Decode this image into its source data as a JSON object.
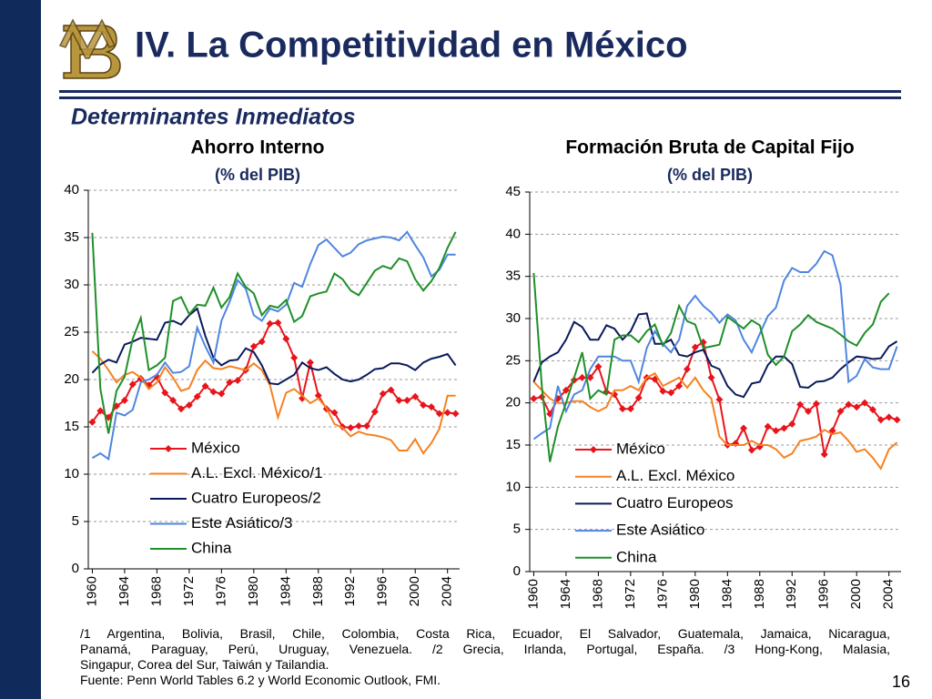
{
  "header": {
    "title": "IV. La Competitividad en México",
    "subtitle": "Determinantes Inmediatos"
  },
  "chart_data": [
    {
      "type": "line",
      "title": "Ahorro Interno",
      "subtitle": "(% del PIB)",
      "x": [
        1960,
        1961,
        1962,
        1963,
        1964,
        1965,
        1966,
        1967,
        1968,
        1969,
        1970,
        1971,
        1972,
        1973,
        1974,
        1975,
        1976,
        1977,
        1978,
        1979,
        1980,
        1981,
        1982,
        1983,
        1984,
        1985,
        1986,
        1987,
        1988,
        1989,
        1990,
        1991,
        1992,
        1993,
        1994,
        1995,
        1996,
        1997,
        1998,
        1999,
        2000,
        2001,
        2002,
        2003,
        2004,
        2005
      ],
      "xlim": [
        1959.5,
        2005.5
      ],
      "xticks": [
        1960,
        1964,
        1968,
        1972,
        1976,
        1980,
        1984,
        1988,
        1992,
        1996,
        2000,
        2004
      ],
      "ylim": [
        0,
        40
      ],
      "yticks": [
        0,
        5,
        10,
        15,
        20,
        25,
        30,
        35,
        40
      ],
      "grid": true,
      "legend": "bottom",
      "series": [
        {
          "name": "México",
          "color": "#e8141b",
          "marker": "diamond",
          "values": [
            15.5,
            16.7,
            16.0,
            17.2,
            17.8,
            19.5,
            20.1,
            19.4,
            20.3,
            18.6,
            17.8,
            16.9,
            17.3,
            18.2,
            19.3,
            18.7,
            18.5,
            19.7,
            19.9,
            21.0,
            23.5,
            24.0,
            25.9,
            26.0,
            24.3,
            22.3,
            18.0,
            21.8,
            18.3,
            16.9,
            16.5,
            15.0,
            14.9,
            15.1,
            15.1,
            16.6,
            18.5,
            18.9,
            17.8,
            17.8,
            18.2,
            17.3,
            17.1,
            16.4,
            16.5,
            16.4
          ]
        },
        {
          "name": "A.L. Excl. México/1",
          "color": "#f58220",
          "values": [
            23.0,
            22.2,
            21.0,
            19.7,
            20.5,
            20.8,
            20.2,
            19.0,
            19.7,
            21.3,
            20.2,
            18.8,
            19.1,
            21.0,
            22.0,
            21.2,
            21.1,
            21.4,
            21.2,
            21.0,
            21.7,
            21.0,
            19.4,
            16.0,
            18.6,
            19.0,
            18.3,
            17.5,
            18.0,
            17.0,
            15.3,
            14.9,
            14.0,
            14.5,
            14.2,
            14.1,
            13.9,
            13.6,
            12.5,
            12.5,
            13.7,
            12.2,
            13.3,
            14.8,
            18.3,
            18.3
          ]
        },
        {
          "name": "Cuatro Europeos/2",
          "color": "#0a1a5c",
          "values": [
            20.7,
            21.6,
            22.1,
            21.8,
            23.7,
            24.0,
            24.4,
            24.3,
            24.2,
            26.0,
            26.2,
            25.8,
            26.8,
            27.5,
            24.6,
            22.3,
            21.5,
            22.0,
            22.1,
            23.3,
            22.9,
            21.5,
            19.6,
            19.5,
            20.0,
            20.5,
            21.8,
            21.2,
            21.0,
            21.3,
            20.6,
            20.0,
            19.8,
            20.0,
            20.5,
            21.1,
            21.2,
            21.7,
            21.7,
            21.5,
            21.0,
            21.8,
            22.2,
            22.4,
            22.7,
            21.5
          ]
        },
        {
          "name": "Este Asiático/3",
          "color": "#4f86e0",
          "values": [
            11.7,
            12.2,
            11.6,
            16.5,
            16.2,
            16.8,
            19.7,
            20.0,
            20.5,
            21.8,
            20.7,
            20.8,
            21.4,
            25.5,
            23.5,
            21.8,
            26.2,
            28.2,
            30.5,
            29.6,
            26.8,
            26.2,
            27.5,
            27.2,
            27.9,
            30.2,
            29.8,
            32.2,
            34.2,
            34.8,
            33.9,
            33.0,
            33.4,
            34.3,
            34.7,
            34.9,
            35.1,
            35.0,
            34.7,
            35.6,
            34.2,
            32.9,
            30.9,
            31.6,
            33.2,
            33.2
          ]
        },
        {
          "name": "China",
          "color": "#1f8f2a",
          "values": [
            35.5,
            19.0,
            14.3,
            18.8,
            20.3,
            24.3,
            26.5,
            21.0,
            21.5,
            22.3,
            28.3,
            28.7,
            26.9,
            27.9,
            27.8,
            29.7,
            27.6,
            28.7,
            31.2,
            29.8,
            29.1,
            26.8,
            27.8,
            27.6,
            28.4,
            26.1,
            26.7,
            28.8,
            29.1,
            29.3,
            31.2,
            30.6,
            29.4,
            28.9,
            30.2,
            31.5,
            32.0,
            31.7,
            32.8,
            32.5,
            30.6,
            29.4,
            30.4,
            31.8,
            33.9,
            35.6
          ]
        }
      ]
    },
    {
      "type": "line",
      "title": "Formación Bruta de Capital Fijo",
      "subtitle": "(% del PIB)",
      "x": [
        1960,
        1961,
        1962,
        1963,
        1964,
        1965,
        1966,
        1967,
        1968,
        1969,
        1970,
        1971,
        1972,
        1973,
        1974,
        1975,
        1976,
        1977,
        1978,
        1979,
        1980,
        1981,
        1982,
        1983,
        1984,
        1985,
        1986,
        1987,
        1988,
        1989,
        1990,
        1991,
        1992,
        1993,
        1994,
        1995,
        1996,
        1997,
        1998,
        1999,
        2000,
        2001,
        2002,
        2003,
        2004,
        2005
      ],
      "xlim": [
        1959.5,
        2005.5
      ],
      "xticks": [
        1960,
        1964,
        1968,
        1972,
        1976,
        1980,
        1984,
        1988,
        1992,
        1996,
        2000,
        2004
      ],
      "ylim": [
        0,
        45
      ],
      "yticks": [
        0,
        5,
        10,
        15,
        20,
        25,
        30,
        35,
        40,
        45
      ],
      "grid": true,
      "legend": "bottom",
      "series": [
        {
          "name": "México",
          "color": "#e8141b",
          "marker": "diamond",
          "values": [
            20.5,
            20.7,
            18.7,
            20.5,
            21.5,
            22.7,
            23.0,
            23.0,
            24.3,
            21.3,
            21.0,
            19.3,
            19.3,
            20.6,
            23.0,
            22.8,
            21.4,
            21.2,
            22.0,
            24.0,
            26.6,
            27.2,
            23.0,
            20.4,
            15.0,
            15.2,
            17.0,
            14.4,
            14.8,
            17.2,
            16.7,
            17.0,
            17.5,
            19.8,
            19.0,
            19.9,
            13.9,
            16.7,
            19.0,
            19.8,
            19.5,
            20.0,
            19.2,
            18.0,
            18.3,
            18.0
          ]
        },
        {
          "name": "A.L. Excl. México",
          "color": "#f58220",
          "values": [
            22.5,
            21.5,
            20.5,
            20.0,
            20.0,
            20.2,
            20.2,
            19.5,
            19.0,
            19.5,
            21.5,
            21.5,
            22.0,
            21.5,
            23.0,
            23.5,
            22.0,
            22.5,
            23.0,
            21.8,
            23.0,
            21.5,
            20.5,
            16.0,
            15.0,
            15.0,
            15.0,
            15.5,
            15.0,
            15.0,
            14.5,
            13.5,
            14.0,
            15.5,
            15.7,
            16.0,
            16.8,
            16.3,
            16.5,
            15.5,
            14.2,
            14.5,
            13.5,
            12.2,
            14.5,
            15.3
          ]
        },
        {
          "name": "Cuatro Europeos",
          "color": "#0a1a5c",
          "values": [
            22.5,
            24.8,
            25.5,
            26.0,
            27.5,
            29.6,
            29.0,
            27.5,
            27.5,
            29.2,
            28.8,
            27.5,
            28.5,
            30.5,
            30.6,
            27.0,
            27.0,
            27.5,
            25.7,
            25.5,
            26.0,
            26.3,
            24.4,
            24.0,
            22.0,
            21.0,
            20.7,
            22.3,
            22.5,
            24.5,
            25.5,
            25.5,
            24.6,
            21.9,
            21.8,
            22.5,
            22.6,
            23.0,
            24.0,
            24.8,
            25.5,
            25.4,
            25.2,
            25.3,
            26.7,
            27.3
          ]
        },
        {
          "name": "Este Asiático",
          "color": "#4f86e0",
          "values": [
            15.7,
            16.4,
            17.0,
            22.0,
            19.0,
            21.0,
            21.5,
            24.0,
            25.5,
            25.5,
            25.5,
            25.0,
            25.0,
            22.5,
            26.5,
            28.5,
            27.0,
            26.0,
            27.5,
            31.5,
            32.7,
            31.5,
            30.7,
            29.5,
            30.5,
            29.8,
            27.5,
            26.0,
            28.2,
            30.3,
            31.3,
            34.5,
            36.0,
            35.5,
            35.5,
            36.5,
            38.0,
            37.5,
            34.0,
            22.5,
            23.2,
            25.2,
            24.2,
            24.0,
            24.0,
            26.7
          ]
        },
        {
          "name": "China",
          "color": "#1f8f2a",
          "values": [
            35.4,
            22.0,
            13.0,
            17.2,
            20.0,
            23.0,
            26.0,
            20.5,
            21.5,
            21.0,
            27.5,
            28.0,
            28.0,
            27.2,
            28.5,
            29.3,
            26.8,
            28.3,
            31.5,
            29.7,
            29.3,
            26.5,
            26.7,
            26.9,
            30.2,
            29.5,
            28.8,
            29.8,
            29.2,
            25.7,
            24.5,
            25.5,
            28.5,
            29.3,
            30.4,
            29.6,
            29.2,
            28.8,
            28.1,
            27.3,
            26.8,
            28.3,
            29.3,
            32.0,
            33.0,
            null
          ]
        }
      ]
    }
  ],
  "footnotes": [
    "/1 Argentina, Bolivia, Brasil, Chile, Colombia, Costa Rica, Ecuador, El Salvador, Guatemala, Jamaica, Nicaragua,",
    "Panamá, Paraguay, Perú, Uruguay, Venezuela. /2 Grecia, Irlanda, Portugal, España. /3 Hong-Kong, Malasia,",
    "Singapur, Corea del Sur, Taiwán y Tailandia.",
    "Fuente: Penn World Tables 6.2 y World Economic Outlook, FMI."
  ],
  "page_number": "16"
}
